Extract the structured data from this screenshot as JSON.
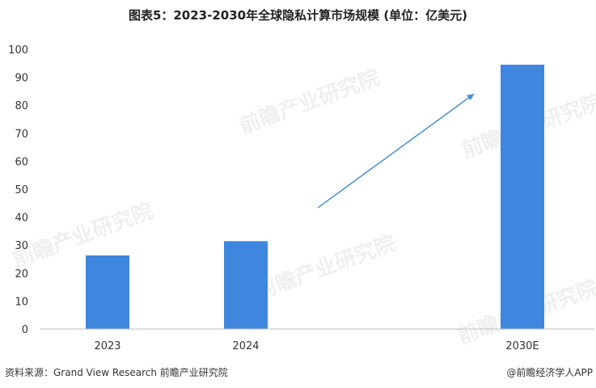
{
  "title": "图表5：2023-2030年全球隐私计算市场规模 (单位：亿美元)",
  "footer": {
    "source": "资料来源：Grand View Research 前瞻产业研究院",
    "credit": "@前瞻经济学人APP"
  },
  "watermark": "前瞻产业研究院",
  "colors": {
    "bar": "#3f86df",
    "arrow": "#4a8fd6",
    "axis": "#bfbfbf"
  },
  "chart_data": {
    "type": "bar",
    "title": "图表5：2023-2030年全球隐私计算市场规模 (单位：亿美元)",
    "categories": [
      "2023",
      "2024",
      "2030E"
    ],
    "values": [
      26.3,
      31.4,
      94.5
    ],
    "ylim": [
      0,
      100
    ],
    "yticks": [
      "0",
      "10",
      "20",
      "30",
      "40",
      "50",
      "60",
      "70",
      "80",
      "90",
      "100"
    ],
    "xlabel": "",
    "ylabel": "",
    "grid": false,
    "legend": "none",
    "annotation": "upward trend arrow between 2024 and 2030E"
  }
}
